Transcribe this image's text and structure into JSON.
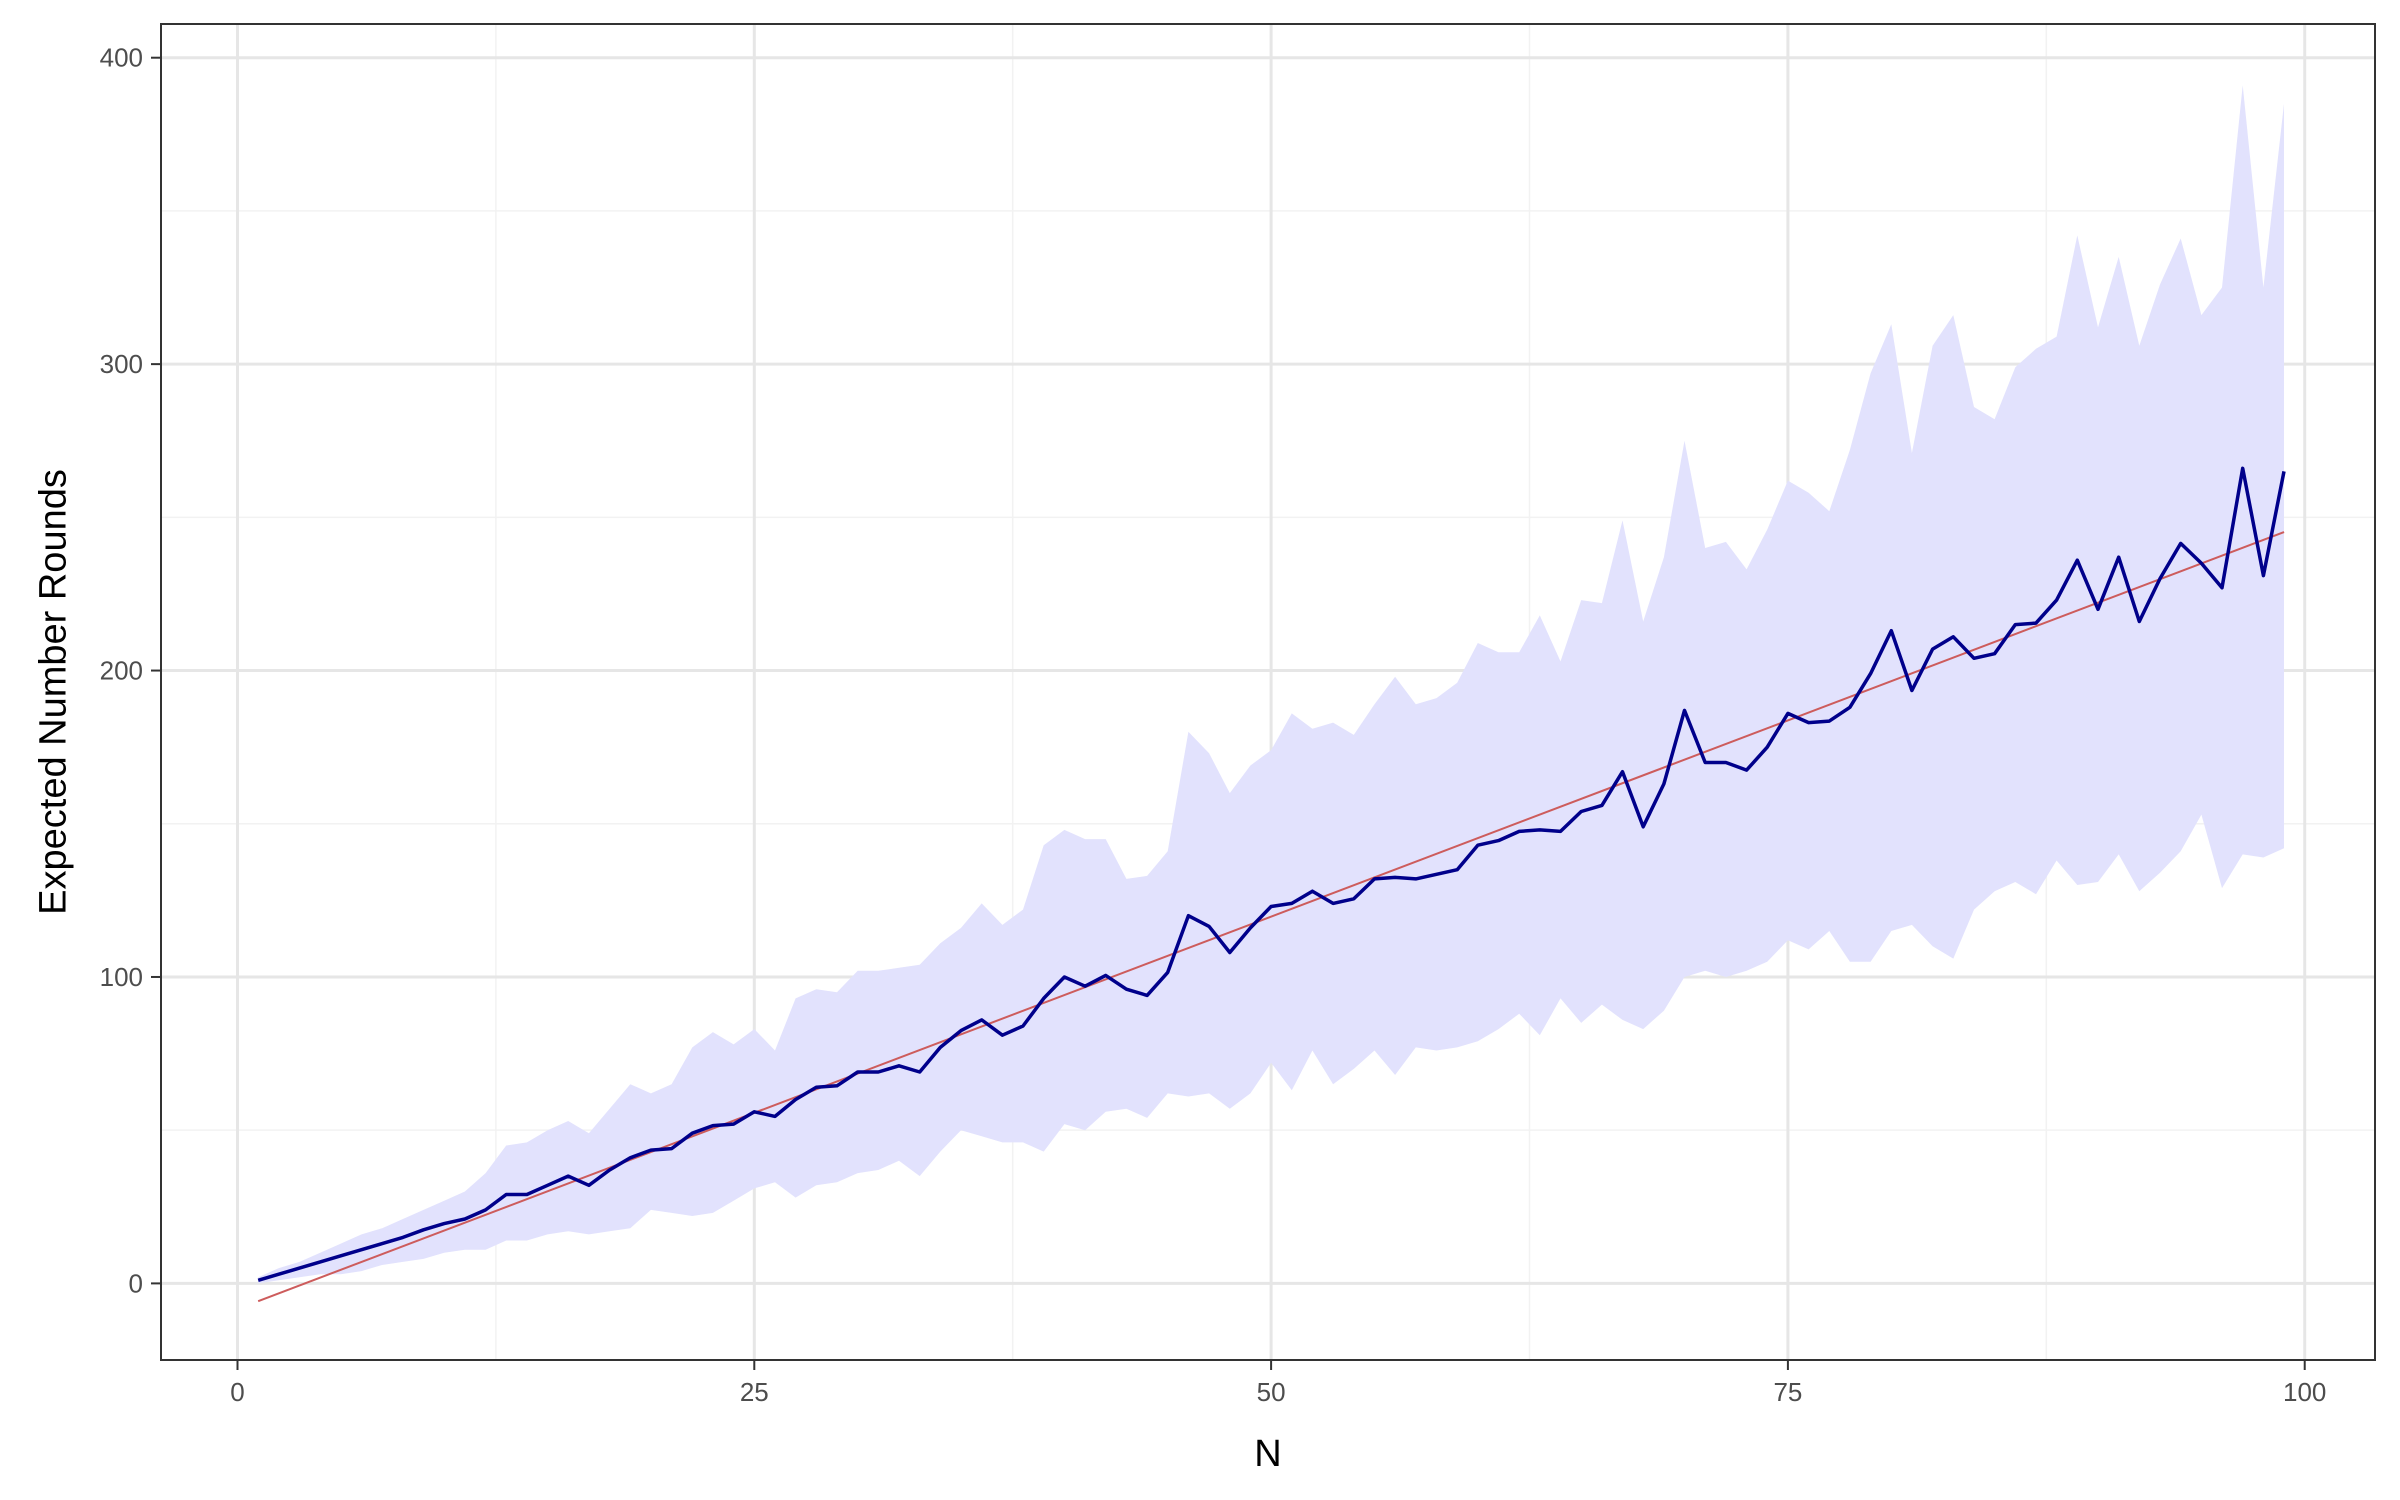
{
  "chart_data": {
    "type": "line",
    "title": "",
    "xlabel": "N",
    "ylabel": "Expected Number Rounds",
    "xlim": [
      -3.7,
      103.4
    ],
    "ylim": [
      -25,
      411
    ],
    "x_ticks": [
      0,
      25,
      50,
      75,
      100
    ],
    "y_ticks": [
      0,
      100,
      200,
      300,
      400
    ],
    "x_tick_labels": [
      "0",
      "25",
      "50",
      "75",
      "100"
    ],
    "y_tick_labels": [
      "0",
      "100",
      "200",
      "300",
      "400"
    ],
    "grid": true,
    "legend": "none",
    "colors": {
      "mean_line": "#00008b",
      "band_fill": "#e2e2fd",
      "fit_line": "#cd5c5c",
      "grid_major": "#e6e6e6",
      "grid_minor": "#f2f2f2",
      "panel_border": "#333333"
    },
    "series": [
      {
        "x": [
          1,
          2,
          3,
          4,
          5,
          6,
          7,
          8,
          9,
          10,
          11,
          12,
          13,
          14,
          15,
          16,
          17,
          18,
          19,
          20,
          21,
          22,
          23,
          24,
          25,
          26,
          27,
          28,
          29,
          30,
          31,
          32,
          33,
          34,
          35,
          36,
          37,
          38,
          39,
          40,
          41,
          42,
          43,
          44,
          45,
          46,
          47,
          48,
          49,
          50,
          51,
          52,
          53,
          54,
          55,
          56,
          57,
          58,
          59,
          60,
          61,
          62,
          63,
          64,
          65,
          66,
          67,
          68,
          69,
          70,
          71,
          72,
          73,
          74,
          75,
          76,
          77,
          78,
          79,
          80,
          81,
          82,
          83,
          84,
          85,
          86,
          87,
          88,
          89,
          90,
          91,
          92,
          93,
          94,
          95,
          96,
          97,
          98,
          99
        ],
        "values": [
          1,
          3,
          5,
          7,
          9,
          11,
          13,
          15,
          17.5,
          19.5,
          21,
          24,
          29,
          29,
          32,
          35,
          32,
          37,
          41,
          43.5,
          44,
          49,
          51.5,
          52,
          56,
          54.5,
          60,
          64,
          64.5,
          69,
          69,
          71,
          69,
          77,
          82.5,
          86,
          81,
          84,
          93,
          100,
          97,
          100.5,
          96,
          94,
          101.5,
          120,
          116.5,
          108,
          116,
          123,
          124,
          128,
          124,
          125.5,
          132,
          132.5,
          132,
          133.5,
          135,
          143,
          144.5,
          147.5,
          148,
          147.5,
          154,
          156,
          167,
          149,
          163,
          187,
          170,
          170,
          167.5,
          175,
          186,
          183,
          183.5,
          188,
          199,
          213,
          193.5,
          207,
          211,
          204,
          205.5,
          215,
          215.5,
          223,
          236,
          220,
          237,
          216,
          230,
          241.5,
          235,
          227,
          266,
          231,
          265
        ]
      },
      {
        "x": [
          1,
          2,
          3,
          4,
          5,
          6,
          7,
          8,
          9,
          10,
          11,
          12,
          13,
          14,
          15,
          16,
          17,
          18,
          19,
          20,
          21,
          22,
          23,
          24,
          25,
          26,
          27,
          28,
          29,
          30,
          31,
          32,
          33,
          34,
          35,
          36,
          37,
          38,
          39,
          40,
          41,
          42,
          43,
          44,
          45,
          46,
          47,
          48,
          49,
          50,
          51,
          52,
          53,
          54,
          55,
          56,
          57,
          58,
          59,
          60,
          61,
          62,
          63,
          64,
          65,
          66,
          67,
          68,
          69,
          70,
          71,
          72,
          73,
          74,
          75,
          76,
          77,
          78,
          79,
          80,
          81,
          82,
          83,
          84,
          85,
          86,
          87,
          88,
          89,
          90,
          91,
          92,
          93,
          94,
          95,
          96,
          97,
          98,
          99
        ],
        "values": [
          2,
          5,
          7,
          10,
          13,
          16,
          18,
          21,
          24,
          27,
          30,
          36,
          45,
          46,
          50,
          53,
          49,
          57,
          65,
          62,
          65,
          77,
          82,
          78,
          83,
          76,
          93,
          96,
          95,
          102,
          102,
          103,
          104,
          111,
          116,
          124,
          117,
          122,
          143,
          148,
          145,
          145,
          132,
          133,
          141,
          180,
          173,
          160,
          169,
          174,
          186,
          181,
          183,
          179,
          189,
          198,
          189,
          191,
          196,
          209,
          206,
          206,
          218,
          203,
          223,
          222,
          249,
          216,
          237,
          275,
          240,
          242,
          233,
          246,
          262,
          258,
          252,
          272,
          297,
          313,
          271,
          306,
          316,
          286,
          282,
          299,
          305,
          309,
          342,
          312,
          335,
          306,
          326,
          341,
          316,
          325,
          391,
          325,
          385
        ]
      },
      {
        "x": [
          1,
          2,
          3,
          4,
          5,
          6,
          7,
          8,
          9,
          10,
          11,
          12,
          13,
          14,
          15,
          16,
          17,
          18,
          19,
          20,
          21,
          22,
          23,
          24,
          25,
          26,
          27,
          28,
          29,
          30,
          31,
          32,
          33,
          34,
          35,
          36,
          37,
          38,
          39,
          40,
          41,
          42,
          43,
          44,
          45,
          46,
          47,
          48,
          49,
          50,
          51,
          52,
          53,
          54,
          55,
          56,
          57,
          58,
          59,
          60,
          61,
          62,
          63,
          64,
          65,
          66,
          67,
          68,
          69,
          70,
          71,
          72,
          73,
          74,
          75,
          76,
          77,
          78,
          79,
          80,
          81,
          82,
          83,
          84,
          85,
          86,
          87,
          88,
          89,
          90,
          91,
          92,
          93,
          94,
          95,
          96,
          97,
          98,
          99
        ],
        "values": [
          0,
          1,
          2,
          3,
          3,
          4,
          6,
          7,
          8,
          10,
          11,
          11,
          14,
          14,
          16,
          17,
          16,
          17,
          18,
          24,
          23,
          22,
          23,
          27,
          31,
          33,
          28,
          32,
          33,
          36,
          37,
          40,
          35,
          43,
          50,
          48,
          46,
          46,
          43,
          52,
          50,
          56,
          57,
          54,
          62,
          61,
          62,
          57,
          62,
          72,
          63,
          76,
          65,
          70,
          76,
          68,
          77,
          76,
          77,
          79,
          83,
          88,
          81,
          93,
          85,
          91,
          86,
          83,
          89,
          100,
          102,
          100,
          102,
          105,
          112,
          109,
          115,
          105,
          105,
          115,
          117,
          110,
          106,
          122,
          128,
          131,
          127,
          138,
          130,
          131,
          140,
          128,
          134,
          141,
          153,
          129,
          140,
          139,
          142
        ]
      },
      {
        "x": [
          1,
          99
        ],
        "values": [
          -5.8,
          245.2
        ]
      }
    ]
  }
}
